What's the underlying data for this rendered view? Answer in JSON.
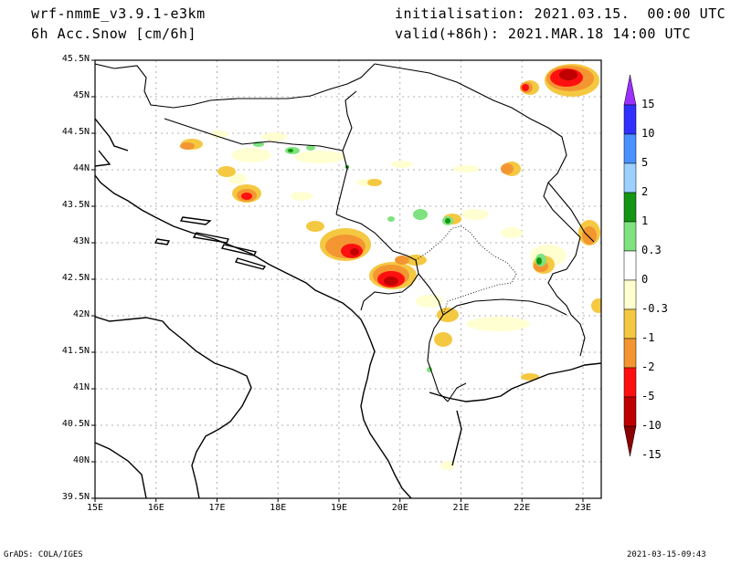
{
  "header": {
    "model": "wrf-nmmE_v3.9.1-e3km",
    "variable": "6h Acc.Snow [cm/6h]",
    "init": "initialisation: 2021.03.15.  00:00 UTC",
    "valid": "valid(+86h): 2021.MAR.18 14:00 UTC"
  },
  "footer": {
    "software": "GrADS: COLA/IGES",
    "timestamp": "2021-03-15-09:43"
  },
  "map": {
    "lat_ticks": [
      "45.5N",
      "45N",
      "44.5N",
      "44N",
      "43.5N",
      "43N",
      "42.5N",
      "42N",
      "41.5N",
      "41N",
      "40.5N",
      "40N",
      "39.5N"
    ],
    "lon_ticks": [
      "15E",
      "16E",
      "17E",
      "18E",
      "19E",
      "20E",
      "21E",
      "22E",
      "23E"
    ],
    "extent": {
      "lon": [
        15,
        23.3
      ],
      "lat": [
        39.5,
        45.5
      ]
    },
    "grid": true
  },
  "colorbar": {
    "labels": [
      "15",
      "10",
      "5",
      "2",
      "1",
      "0.3",
      "0",
      "-0.3",
      "-1",
      "-2",
      "-5",
      "-10",
      "-15"
    ],
    "colors": [
      "#9b30ff",
      "#3030ff",
      "#4a90ff",
      "#9cd0ff",
      "#149614",
      "#7ee37e",
      "#ffffff",
      "#ffffd0",
      "#f5c842",
      "#f39632",
      "#ff1010",
      "#c00000",
      "#8b0000"
    ]
  }
}
